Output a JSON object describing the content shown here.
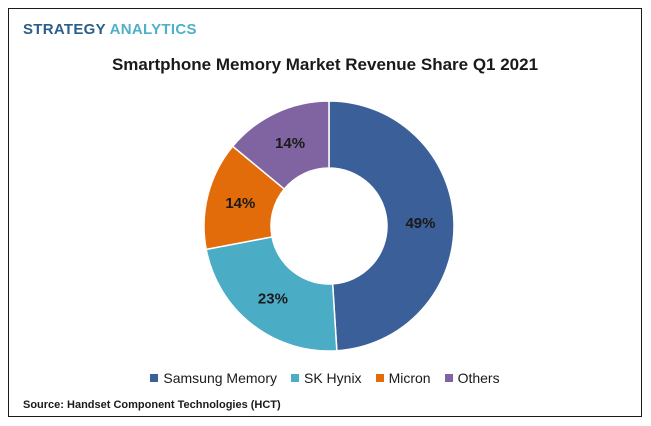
{
  "brand": {
    "part1": "STRATEGY",
    "part2": "ANALYTICS"
  },
  "source": "Source: Handset Component Technologies (HCT)",
  "colors": {
    "Samsung Memory": "#3b5f98",
    "SK Hynix": "#4bacc6",
    "Micron": "#e36c0a",
    "Others": "#8064a2"
  },
  "chart_data": {
    "type": "pie",
    "title": "Smartphone Memory Market Revenue Share Q1 2021",
    "donut": true,
    "categories": [
      "Samsung Memory",
      "SK Hynix",
      "Micron",
      "Others"
    ],
    "values": [
      49,
      23,
      14,
      14
    ],
    "labels": [
      "49%",
      "23%",
      "14%",
      "14%"
    ],
    "legend": "bottom"
  }
}
